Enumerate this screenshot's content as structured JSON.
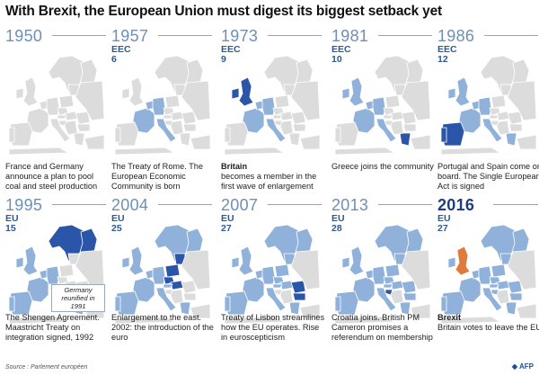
{
  "title": "With Brexit, the European Union must digest its biggest setback yet",
  "panels": [
    {
      "year": "1950",
      "org": "",
      "count": "",
      "caption_bold": "",
      "caption": "France and Germany announce a plan to pool coal and steel production"
    },
    {
      "year": "1957",
      "org": "EEC",
      "count": "6",
      "caption_bold": "",
      "caption": "The Treaty of Rome. The European Economic Community is born"
    },
    {
      "year": "1973",
      "org": "EEC",
      "count": "9",
      "caption_bold": "Britain",
      "caption": "becomes a member in the first wave of enlargement"
    },
    {
      "year": "1981",
      "org": "EEC",
      "count": "10",
      "caption_bold": "",
      "caption": "Greece joins the community"
    },
    {
      "year": "1986",
      "org": "EEC",
      "count": "12",
      "caption_bold": "",
      "caption": "Portugal and Spain come on board. The Single European Act is signed"
    },
    {
      "year": "1995",
      "org": "EU",
      "count": "15",
      "caption_bold": "",
      "caption": "The Shengen Agreement. Maastricht Treaty on integration signed, 1992"
    },
    {
      "year": "2004",
      "org": "EU",
      "count": "25",
      "caption_bold": "",
      "caption": "Enlargement to the east. 2002: the introduction of the euro"
    },
    {
      "year": "2007",
      "org": "EU",
      "count": "27",
      "caption_bold": "",
      "caption": "Treaty of Lisbon streamlines how the EU operates. Rise in euroscepticism"
    },
    {
      "year": "2013",
      "org": "EU",
      "count": "28",
      "caption_bold": "",
      "caption": "Croatia joins. British PM Cameron promises a referendum on membership"
    },
    {
      "year": "2016",
      "org": "EU",
      "count": "27",
      "caption_bold": "Brexit",
      "caption": "Britain votes to leave the EU"
    }
  ],
  "note": "Germany reunified in 1991",
  "source": "Source : Parlement européen",
  "logo": "AFP",
  "colors": {
    "member": "#8fb1da",
    "nonmember": "#dcdcdc",
    "joined": "#2b55a8",
    "leaving": "#e07a3c",
    "sea": "#ffffff"
  }
}
